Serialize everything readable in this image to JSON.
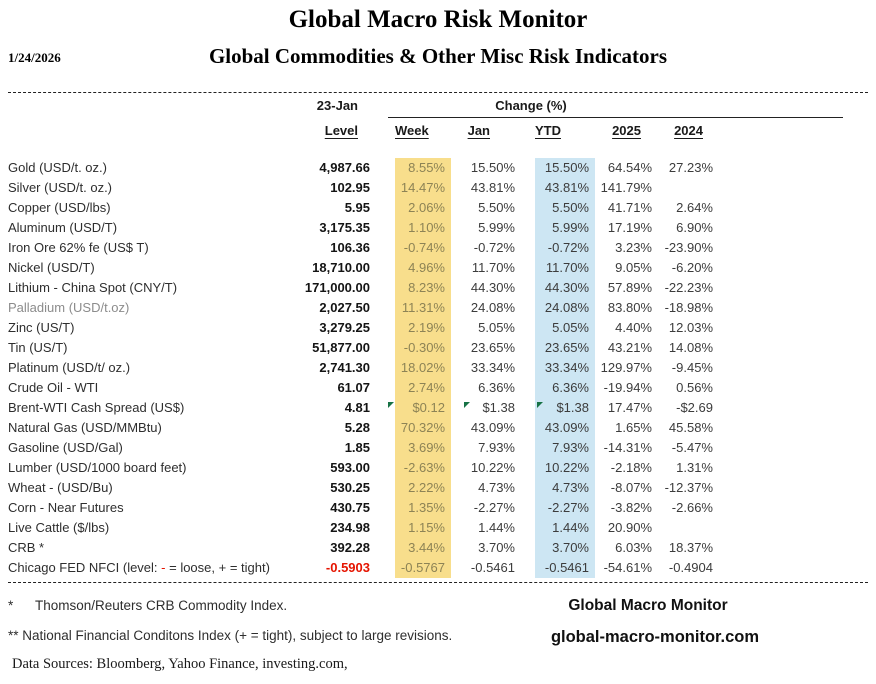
{
  "meta": {
    "title": "Global Macro Risk Monitor",
    "subtitle": "Global Commodities & Other Misc Risk Indicators",
    "date": "1/24/2026"
  },
  "header": {
    "level_date": "23-Jan",
    "level_label": "Level",
    "change_label": "Change (%)",
    "cols": [
      "Week",
      "Jan",
      "YTD",
      "2025",
      "2024"
    ]
  },
  "table": {
    "rows": [
      {
        "name": "Gold (USD/t. oz.)",
        "level": "4,987.66",
        "week": "8.55%",
        "jan": "15.50%",
        "ytd": "15.50%",
        "y2025": "64.54%",
        "y2024": "27.23%"
      },
      {
        "name": "Silver (USD/t. oz.)",
        "level": "102.95",
        "week": "14.47%",
        "jan": "43.81%",
        "ytd": "43.81%",
        "y2025": "141.79%",
        "y2024": ""
      },
      {
        "name": "Copper (USD/lbs)",
        "level": "5.95",
        "week": "2.06%",
        "jan": "5.50%",
        "ytd": "5.50%",
        "y2025": "41.71%",
        "y2024": "2.64%"
      },
      {
        "name": "Aluminum (USD/T)",
        "level": "3,175.35",
        "week": "1.10%",
        "jan": "5.99%",
        "ytd": "5.99%",
        "y2025": "17.19%",
        "y2024": "6.90%"
      },
      {
        "name": "Iron Ore 62% fe (US$ T)",
        "level": "106.36",
        "week": "-0.74%",
        "jan": "-0.72%",
        "ytd": "-0.72%",
        "y2025": "3.23%",
        "y2024": "-23.90%"
      },
      {
        "name": "Nickel (USD/T)",
        "level": "18,710.00",
        "week": "4.96%",
        "jan": "11.70%",
        "ytd": "11.70%",
        "y2025": "9.05%",
        "y2024": "-6.20%"
      },
      {
        "name": "Lithium - China Spot (CNY/T)",
        "level": "171,000.00",
        "week": "8.23%",
        "jan": "44.30%",
        "ytd": "44.30%",
        "y2025": "57.89%",
        "y2024": "-22.23%"
      },
      {
        "name": "Palladium (USD/t.oz)",
        "muted": true,
        "level": "2,027.50",
        "week": "11.31%",
        "jan": "24.08%",
        "ytd": "24.08%",
        "y2025": "83.80%",
        "y2024": "-18.98%"
      },
      {
        "name": "Zinc (US/T)",
        "level": "3,279.25",
        "week": "2.19%",
        "jan": "5.05%",
        "ytd": "5.05%",
        "y2025": "4.40%",
        "y2024": "12.03%"
      },
      {
        "name": "Tin (US/T)",
        "level": "51,877.00",
        "week": "-0.30%",
        "jan": "23.65%",
        "ytd": "23.65%",
        "y2025": "43.21%",
        "y2024": "14.08%"
      },
      {
        "name": "Platinum (USD/t/ oz.)",
        "level": "2,741.30",
        "week": "18.02%",
        "jan": "33.34%",
        "ytd": "33.34%",
        "y2025": "129.97%",
        "y2024": "-9.45%"
      },
      {
        "name": "Crude Oil - WTI",
        "level": "61.07",
        "week": "2.74%",
        "jan": "6.36%",
        "ytd": "6.36%",
        "y2025": "-19.94%",
        "y2024": "0.56%"
      },
      {
        "name": "Brent-WTI Cash Spread (US$)",
        "level": "4.81",
        "week": "$0.12",
        "jan": "$1.38",
        "ytd": "$1.38",
        "y2025": "17.47%",
        "y2024": "-$2.69",
        "flags": [
          "week",
          "jan",
          "ytd"
        ]
      },
      {
        "name": "Natural Gas  (USD/MMBtu)",
        "level": "5.28",
        "week": "70.32%",
        "jan": "43.09%",
        "ytd": "43.09%",
        "y2025": "1.65%",
        "y2024": "45.58%"
      },
      {
        "name": "Gasoline (USD/Gal)",
        "level": "1.85",
        "week": "3.69%",
        "jan": "7.93%",
        "ytd": "7.93%",
        "y2025": "-14.31%",
        "y2024": "-5.47%"
      },
      {
        "name": "Lumber (USD/1000 board feet)",
        "level": "593.00",
        "week": "-2.63%",
        "jan": "10.22%",
        "ytd": "10.22%",
        "y2025": "-2.18%",
        "y2024": "1.31%"
      },
      {
        "name": "Wheat - (USD/Bu)",
        "level": "530.25",
        "week": "2.22%",
        "jan": "4.73%",
        "ytd": "4.73%",
        "y2025": "-8.07%",
        "y2024": "-12.37%"
      },
      {
        "name": "Corn - Near Futures",
        "level": "430.75",
        "week": "1.35%",
        "jan": "-2.27%",
        "ytd": "-2.27%",
        "y2025": "-3.82%",
        "y2024": "-2.66%"
      },
      {
        "name": "Live Cattle ($/lbs)",
        "level": "234.98",
        "week": "1.15%",
        "jan": "1.44%",
        "ytd": "1.44%",
        "y2025": "20.90%",
        "y2024": ""
      },
      {
        "name": "CRB *",
        "level": "392.28",
        "week": "3.44%",
        "jan": "3.70%",
        "ytd": "3.70%",
        "y2025": "6.03%",
        "y2024": "18.37%"
      },
      {
        "name_parts": [
          {
            "t": "Chicago FED NFCI (level:  "
          },
          {
            "t": "-",
            "c": "red"
          },
          {
            "t": " = loose,  + = tight)"
          }
        ],
        "level": "-0.5903",
        "level_neg": true,
        "week": "-0.5767",
        "jan": "-0.5461",
        "ytd": "-0.5461",
        "y2025": "-54.61%",
        "y2024": "-0.4904"
      }
    ]
  },
  "footnotes": {
    "fn1_marker": "*",
    "fn1_text": "Thomson/Reuters CRB Commodity Index.",
    "fn2_text": "** National Financial Conditons Index (+ =  tight), subject to large revisions.",
    "data_sources": "Data Sources:  Bloomberg,  Yahoo Finance, investing.com,"
  },
  "footer": {
    "brand": "Global Macro Monitor",
    "site": "global-macro-monitor.com"
  },
  "colors": {
    "week_highlight": "#f8de8c",
    "week_text": "#8d8355",
    "ytd_highlight": "#cde6f3",
    "negative_red": "#e51400",
    "flag_green": "#177245"
  }
}
